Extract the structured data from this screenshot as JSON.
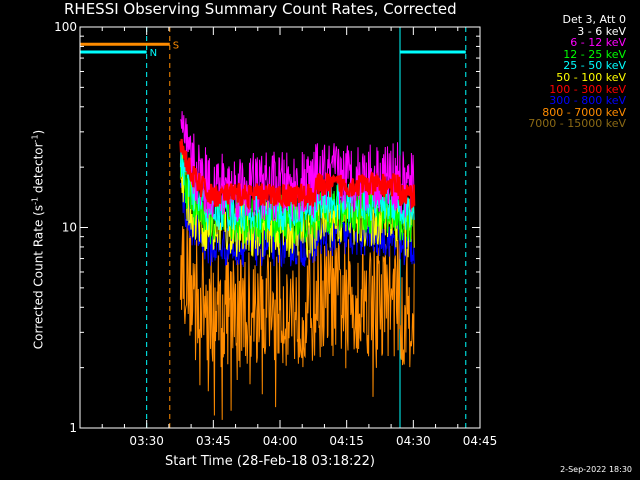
{
  "chart_data": {
    "type": "line",
    "title": "RHESSI Observing Summary Count Rates, Corrected",
    "xlabel": "Start Time (28-Feb-18 03:18:22)",
    "ylabel": "Corrected Count Rate (s⁻¹ detector⁻¹)",
    "ylabel_parts": {
      "base": "Corrected Count Rate (s",
      "sup1": "-1",
      "mid": " detector",
      "sup2": "-1",
      "end": ")"
    },
    "yscale": "log",
    "ylim": [
      1,
      100
    ],
    "xlim_minutes": [
      0,
      90
    ],
    "xtick_labels": [
      "03:30",
      "03:45",
      "04:00",
      "04:15",
      "04:30",
      "04:45"
    ],
    "xtick_minutes": [
      15,
      30,
      45,
      60,
      75,
      90
    ],
    "ytick_labels": [
      "1",
      "10",
      "100"
    ],
    "ytick_values": [
      1,
      10,
      100
    ],
    "legend_header": "Det 3, Att 0",
    "legend_placement": "right",
    "series": [
      {
        "name": "3 - 6 keV",
        "color": "#ffffff",
        "level": null
      },
      {
        "name": "6 - 12 keV",
        "color": "#ff00ff",
        "level": 16
      },
      {
        "name": "12 - 25 keV",
        "color": "#00ff00",
        "level": 11
      },
      {
        "name": "25 - 50 keV",
        "color": "#00ffff",
        "level": 12
      },
      {
        "name": "50 - 100 keV",
        "color": "#ffff00",
        "level": 10
      },
      {
        "name": "100 - 300 keV",
        "color": "#ff0000",
        "level": 14.5
      },
      {
        "name": "300 - 800 keV",
        "color": "#0000ff",
        "level": 8
      },
      {
        "name": "800 - 7000 keV",
        "color": "#ff8c00",
        "level": 4
      },
      {
        "name": "7000 - 15000 keV",
        "color": "#8b6914",
        "level": null
      }
    ],
    "data_window_minutes": [
      22.6,
      75.2
    ],
    "attenuator_bars": [
      {
        "label": "N",
        "color": "#00ffff",
        "x_range": [
          0,
          15
        ],
        "level": 75
      },
      {
        "label": "S",
        "color": "#ff8c00",
        "x_range": [
          0,
          20.2
        ],
        "level": 82
      }
    ],
    "post_bar": {
      "color": "#00ffff",
      "x_range": [
        72,
        86.8
      ],
      "level": 75
    },
    "vertical_markers": [
      {
        "color": "#00ffff",
        "x": 15,
        "style": "dashed"
      },
      {
        "color": "#ff8c00",
        "x": 20.2,
        "style": "dashed"
      },
      {
        "color": "#00ffff",
        "x": 72,
        "style": "solid"
      },
      {
        "color": "#00ffff",
        "x": 86.8,
        "style": "dashed"
      }
    ]
  },
  "footer": {
    "date_stamp": "2-Sep-2022 18:30"
  }
}
